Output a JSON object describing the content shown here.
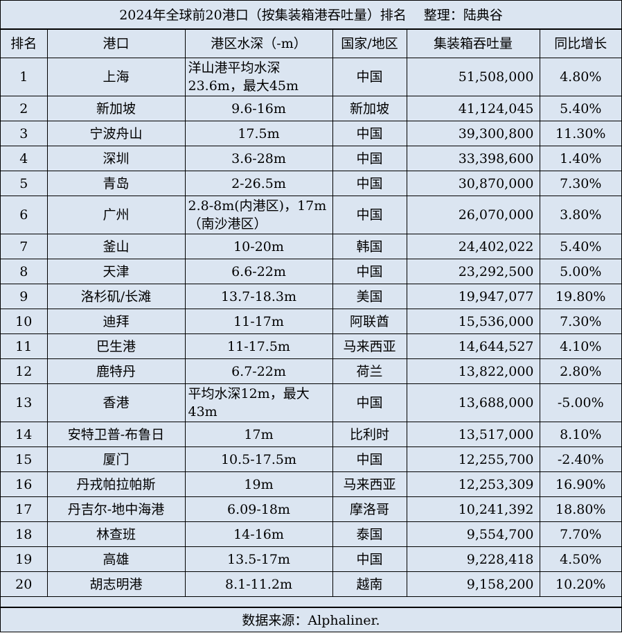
{
  "title": "2024年全球前20港口（按集装箱港吞吐量）排名　 整理：陆典谷",
  "headers": [
    "排名",
    "港口",
    "港区水深（-m）",
    "国家/地区",
    "集装箱吞吐量",
    "同比增长"
  ],
  "rows": [
    {
      "rank": "1",
      "port": "上海",
      "depth": "洋山港平均水深23.6m，最大45m",
      "country": "中国",
      "throughput": "51,508,000",
      "growth": "4.80%"
    },
    {
      "rank": "2",
      "port": "新加坡",
      "depth": "9.6-16m",
      "country": "新加坡",
      "throughput": "41,124,045",
      "growth": "5.40%"
    },
    {
      "rank": "3",
      "port": "宁波舟山",
      "depth": "17.5m",
      "country": "中国",
      "throughput": "39,300,800",
      "growth": "11.30%"
    },
    {
      "rank": "4",
      "port": "深圳",
      "depth": "3.6-28m",
      "country": "中国",
      "throughput": "33,398,600",
      "growth": "1.40%"
    },
    {
      "rank": "5",
      "port": "青岛",
      "depth": "2-26.5m",
      "country": "中国",
      "throughput": "30,870,000",
      "growth": "7.30%"
    },
    {
      "rank": "6",
      "port": "广州",
      "depth": "2.8-8m(内港区)，17m（南沙港区）",
      "country": "中国",
      "throughput": "26,070,000",
      "growth": "3.80%"
    },
    {
      "rank": "7",
      "port": "釜山",
      "depth": "10-20m",
      "country": "韩国",
      "throughput": "24,402,022",
      "growth": "5.40%"
    },
    {
      "rank": "8",
      "port": "天津",
      "depth": "6.6-22m",
      "country": "中国",
      "throughput": "23,292,500",
      "growth": "5.00%"
    },
    {
      "rank": "9",
      "port": "洛杉矶/长滩",
      "depth": "13.7-18.3m",
      "country": "美国",
      "throughput": "19,947,077",
      "growth": "19.80%"
    },
    {
      "rank": "10",
      "port": "迪拜",
      "depth": "11-17m",
      "country": "阿联酋",
      "throughput": "15,536,000",
      "growth": "7.30%"
    },
    {
      "rank": "11",
      "port": "巴生港",
      "depth": "11-17.5m",
      "country": "马来西亚",
      "throughput": "14,644,527",
      "growth": "4.10%"
    },
    {
      "rank": "12",
      "port": "鹿特丹",
      "depth": "6.7-22m",
      "country": "荷兰",
      "throughput": "13,822,000",
      "growth": "2.80%"
    },
    {
      "rank": "13",
      "port": "香港",
      "depth": "平均水深12m，最大43m",
      "country": "中国",
      "throughput": "13,688,000",
      "growth": "-5.00%"
    },
    {
      "rank": "14",
      "port": "安特卫普-布鲁日",
      "depth": "17m",
      "country": "比利时",
      "throughput": "13,517,000",
      "growth": "8.10%"
    },
    {
      "rank": "15",
      "port": "厦门",
      "depth": "10.5-17.5m",
      "country": "中国",
      "throughput": "12,255,700",
      "growth": "-2.40%"
    },
    {
      "rank": "16",
      "port": "丹戎帕拉帕斯",
      "depth": "19m",
      "country": "马来西亚",
      "throughput": "12,253,309",
      "growth": "16.90%"
    },
    {
      "rank": "17",
      "port": "丹吉尔-地中海港",
      "depth": "6.09-18m",
      "country": "摩洛哥",
      "throughput": "10,241,392",
      "growth": "18.80%"
    },
    {
      "rank": "18",
      "port": "林查班",
      "depth": "14-16m",
      "country": "泰国",
      "throughput": "9,554,700",
      "growth": "7.70%"
    },
    {
      "rank": "19",
      "port": "高雄",
      "depth": "13.5-17m",
      "country": "中国",
      "throughput": "9,228,418",
      "growth": "4.50%"
    },
    {
      "rank": "20",
      "port": "胡志明港",
      "depth": "8.1-11.2m",
      "country": "越南",
      "throughput": "9,158,200",
      "growth": "10.20%"
    }
  ],
  "footer": "数据来源：Alphaliner.",
  "colors": {
    "background": "#dbe5f1",
    "border": "#000000"
  }
}
